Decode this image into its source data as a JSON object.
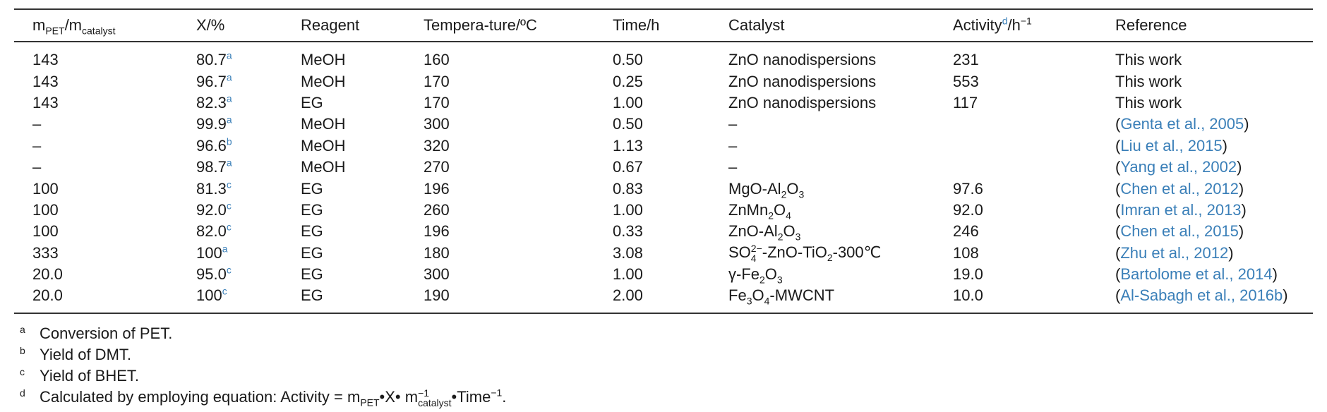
{
  "header": {
    "col1_m": "m",
    "col1_pet": "PET",
    "col1_slash": "/m",
    "col1_cat": "catalyst",
    "col2": "X/%",
    "col3": "Reagent",
    "col4": "Tempera-ture/ºC",
    "col5": "Time/h",
    "col6": "Catalyst",
    "col7_activity": "Activity",
    "col7_note": "d",
    "col7_unit": "/h",
    "col7_exp": "−1",
    "col8": "Reference"
  },
  "rows": [
    {
      "m_ratio": "143",
      "x": "80.7",
      "x_note": "a",
      "reagent": "MeOH",
      "temp": "160",
      "time": "0.50",
      "activity": "231",
      "ref_plain": "This work"
    },
    {
      "m_ratio": "143",
      "x": "96.7",
      "x_note": "a",
      "reagent": "MeOH",
      "temp": "170",
      "time": "0.25",
      "activity": "553",
      "ref_plain": "This work"
    },
    {
      "m_ratio": "143",
      "x": "82.3",
      "x_note": "a",
      "reagent": "EG",
      "temp": "170",
      "time": "1.00",
      "activity": "117",
      "ref_plain": "This work"
    },
    {
      "m_ratio": "–",
      "x": "99.9",
      "x_note": "a",
      "reagent": "MeOH",
      "temp": "300",
      "time": "0.50",
      "catalyst_dash": "–",
      "activity": "",
      "ref_link": "Genta et al., 2005"
    },
    {
      "m_ratio": "–",
      "x": "96.6",
      "x_note": "b",
      "reagent": "MeOH",
      "temp": "320",
      "time": "1.13",
      "catalyst_dash": "–",
      "activity": "",
      "ref_link": "Liu et al., 2015"
    },
    {
      "m_ratio": "–",
      "x": "98.7",
      "x_note": "a",
      "reagent": "MeOH",
      "temp": "270",
      "time": "0.67",
      "catalyst_dash": "–",
      "activity": "",
      "ref_link": "Yang et al., 2002"
    },
    {
      "m_ratio": "100",
      "x": "81.3",
      "x_note": "c",
      "reagent": "EG",
      "temp": "196",
      "time": "0.83",
      "activity": "97.6",
      "ref_link": "Chen et al., 2012"
    },
    {
      "m_ratio": "100",
      "x": "92.0",
      "x_note": "c",
      "reagent": "EG",
      "temp": "260",
      "time": "1.00",
      "activity": "92.0",
      "ref_link": "Imran et al., 2013"
    },
    {
      "m_ratio": "100",
      "x": "82.0",
      "x_note": "c",
      "reagent": "EG",
      "temp": "196",
      "time": "0.33",
      "activity": "246",
      "ref_link": "Chen et al., 2015"
    },
    {
      "m_ratio": "333",
      "x": "100",
      "x_note": "a",
      "reagent": "EG",
      "temp": "180",
      "time": "3.08",
      "activity": "108",
      "ref_link": "Zhu et al., 2012"
    },
    {
      "m_ratio": "20.0",
      "x": "95.0",
      "x_note": "c",
      "reagent": "EG",
      "temp": "300",
      "time": "1.00",
      "activity": "19.0",
      "ref_link": "Bartolome et al., 2014"
    },
    {
      "m_ratio": "20.0",
      "x": "100",
      "x_note": "c",
      "reagent": "EG",
      "temp": "190",
      "time": "2.00",
      "activity": "10.0",
      "ref_link": "Al-Sabagh et al., 2016b"
    }
  ],
  "catalysts": {
    "zno": "ZnO nanodispersions",
    "mgo_a": "MgO-Al",
    "mgo_2": "2",
    "mgo_o": "O",
    "mgo_3": "3",
    "znmn_a": "ZnMn",
    "znmn_2": "2",
    "znmn_o": "O",
    "znmn_4": "4",
    "znoal_a": "ZnO-Al",
    "znoal_2": "2",
    "znoal_o": "O",
    "znoal_3": "3",
    "so_a": "SO",
    "so_sup": "2−",
    "so_sub": "4",
    "so_b": "-ZnO-TiO",
    "so_2": "2",
    "so_c": "-300℃",
    "fe_a": "γ-Fe",
    "fe_2": "2",
    "fe_o": "O",
    "fe_3": "3",
    "fem_a": "Fe",
    "fem_3": "3",
    "fem_o": "O",
    "fem_4": "4",
    "fem_b": "-MWCNT"
  },
  "footnotes": {
    "a_mark": "a",
    "a_text": "Conversion of PET.",
    "b_mark": "b",
    "b_text": "Yield of DMT.",
    "c_mark": "c",
    "c_text": "Yield of BHET.",
    "d_mark": "d",
    "d_text1": "Calculated by employing equation: Activity = m",
    "d_pet": "PET",
    "d_text2": "•X• m",
    "d_exp": "−1",
    "d_cat": "catalyst",
    "d_text3": "•Time",
    "d_exp2": "−1",
    "d_end": "."
  },
  "colors": {
    "link": "#3a7fb8",
    "text": "#1a1a1a",
    "rule": "#333333"
  }
}
